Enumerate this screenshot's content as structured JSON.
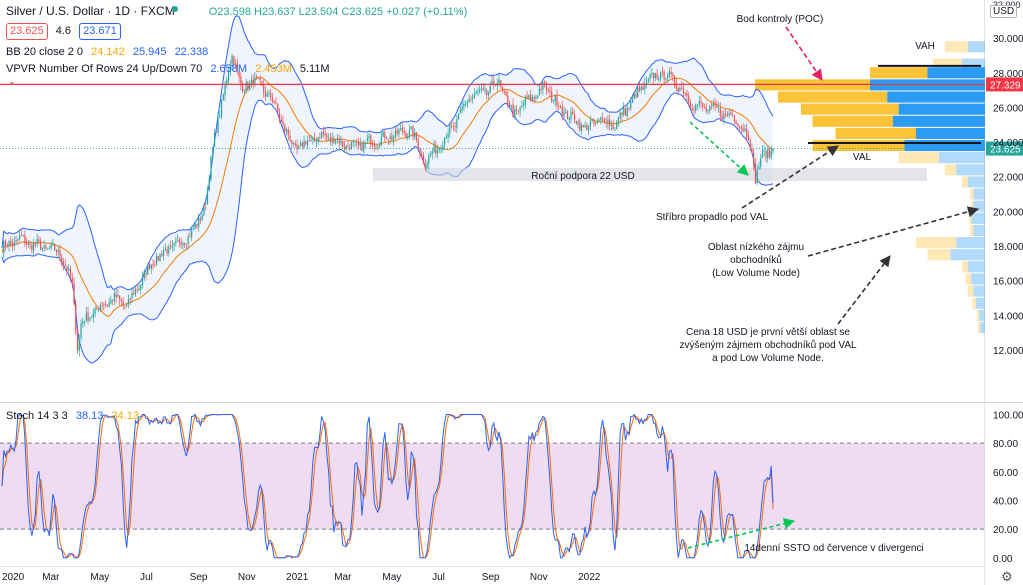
{
  "header": {
    "symbol": "Silver / U.S. Dollar · 1D · FXCM",
    "ohlc": "O23.598 H23.637 L23.504 C23.625 +0.027 (+0.11%)",
    "bid": "23.625",
    "spread": "4.6",
    "ask": "23.671"
  },
  "indicators": {
    "bb_label": "BB 20 close 2 0",
    "bb_basis": "24.142",
    "bb_upper": "25.945",
    "bb_lower": "22.338",
    "vpvr_label": "VPVR Number Of Rows 24 Up/Down 70",
    "vpvr_up": "2.658M",
    "vpvr_down": "2.453M",
    "vpvr_total": "5.11M",
    "stoch_label": "Stoch 14 3 3",
    "stoch_k": "38.13",
    "stoch_d": "34.13"
  },
  "currency": "USD",
  "colors": {
    "up": "#26a69a",
    "down": "#ef5350",
    "bb_fill": "#2962ff",
    "bb_basis": "#f57c00",
    "vp_up": "#fbc02d",
    "vp_down": "#2196f3",
    "stoch_k": "#2962ff",
    "stoch_d": "#ff6d00",
    "stoch_band": "#e1bee7",
    "poc_line": "#f23645",
    "arrow_red": "#e91e63",
    "arrow_green": "#00c853"
  },
  "chart_data": [
    {
      "type": "candlestick",
      "title": "Silver / U.S. Dollar · 1D · FXCM",
      "x_ticks": [
        "2020",
        "Mar",
        "May",
        "Jul",
        "Sep",
        "Nov",
        "2021",
        "Mar",
        "May",
        "Jul",
        "Sep",
        "Nov",
        "2022"
      ],
      "y_ticks": [
        "12.000",
        "14.000",
        "16.000",
        "18.000",
        "20.000",
        "22.000",
        "24.000",
        "26.000",
        "28.000",
        "30.000"
      ],
      "ylim": [
        9.0,
        32.2
      ],
      "last_price": 23.625,
      "last_price_label": "23.625",
      "poc_price": 27.329,
      "poc_label": "27.329",
      "close_path": [
        {
          "t": 0,
          "v": 17.9
        },
        {
          "t": 0.06,
          "v": 18.4
        },
        {
          "t": 0.1,
          "v": 18.1
        },
        {
          "t": 0.15,
          "v": 17.9
        },
        {
          "t": 0.2,
          "v": 17.6
        },
        {
          "t": 0.24,
          "v": 15.8
        },
        {
          "t": 0.26,
          "v": 12.0
        },
        {
          "t": 0.27,
          "v": 13.5
        },
        {
          "t": 0.32,
          "v": 14.3
        },
        {
          "t": 0.38,
          "v": 15.0
        },
        {
          "t": 0.43,
          "v": 14.6
        },
        {
          "t": 0.47,
          "v": 15.8
        },
        {
          "t": 0.52,
          "v": 17.2
        },
        {
          "t": 0.57,
          "v": 17.8
        },
        {
          "t": 0.62,
          "v": 18.3
        },
        {
          "t": 0.67,
          "v": 19.2
        },
        {
          "t": 0.7,
          "v": 20.8
        },
        {
          "t": 0.73,
          "v": 24.6
        },
        {
          "t": 0.77,
          "v": 27.6
        },
        {
          "t": 0.79,
          "v": 29.2
        },
        {
          "t": 0.82,
          "v": 27.0
        },
        {
          "t": 0.86,
          "v": 27.6
        },
        {
          "t": 0.92,
          "v": 26.6
        },
        {
          "t": 1.0,
          "v": 23.6
        },
        {
          "t": 1.1,
          "v": 24.4
        },
        {
          "t": 1.2,
          "v": 23.7
        },
        {
          "t": 1.3,
          "v": 24.2
        },
        {
          "t": 1.4,
          "v": 24.7
        },
        {
          "t": 1.45,
          "v": 22.8
        },
        {
          "t": 1.55,
          "v": 25.0
        },
        {
          "t": 1.6,
          "v": 26.6
        },
        {
          "t": 1.66,
          "v": 26.9
        },
        {
          "t": 1.7,
          "v": 27.5
        },
        {
          "t": 1.75,
          "v": 25.6
        },
        {
          "t": 1.8,
          "v": 26.4
        },
        {
          "t": 1.86,
          "v": 27.2
        },
        {
          "t": 1.92,
          "v": 25.8
        },
        {
          "t": 2.0,
          "v": 24.8
        },
        {
          "t": 2.05,
          "v": 25.3
        },
        {
          "t": 2.1,
          "v": 25.0
        },
        {
          "t": 2.15,
          "v": 26.2
        },
        {
          "t": 2.2,
          "v": 27.3
        },
        {
          "t": 2.25,
          "v": 28.0
        },
        {
          "t": 2.3,
          "v": 27.6
        },
        {
          "t": 2.37,
          "v": 26.1
        },
        {
          "t": 2.45,
          "v": 25.8
        },
        {
          "t": 2.52,
          "v": 25.3
        },
        {
          "t": 2.56,
          "v": 24.1
        },
        {
          "t": 2.58,
          "v": 22.0
        },
        {
          "t": 2.6,
          "v": 23.1
        },
        {
          "t": 2.64,
          "v": 23.6
        }
      ]
    },
    {
      "type": "histogram",
      "title": "VPVR Number Of Rows 24 Up/Down 70",
      "price_bins": [
        {
          "price": 29.5,
          "up": 0.2,
          "down": 0.15
        },
        {
          "price": 28.5,
          "up": 0.25,
          "down": 0.2
        },
        {
          "price": 28.0,
          "up": 0.5,
          "down": 0.5
        },
        {
          "price": 27.3,
          "up": 1.0,
          "down": 1.0
        },
        {
          "price": 26.6,
          "up": 0.95,
          "down": 0.85
        },
        {
          "price": 25.9,
          "up": 0.85,
          "down": 0.75
        },
        {
          "price": 25.2,
          "up": 0.7,
          "down": 0.8
        },
        {
          "price": 24.5,
          "up": 0.7,
          "down": 0.6
        },
        {
          "price": 23.8,
          "up": 0.8,
          "down": 0.7
        },
        {
          "price": 23.1,
          "up": 0.35,
          "down": 0.4
        },
        {
          "price": 22.4,
          "up": 0.1,
          "down": 0.25
        },
        {
          "price": 21.7,
          "up": 0.05,
          "down": 0.15
        },
        {
          "price": 21.0,
          "up": 0.03,
          "down": 0.1
        },
        {
          "price": 20.3,
          "up": 0.02,
          "down": 0.1
        },
        {
          "price": 19.6,
          "up": 0.02,
          "down": 0.12
        },
        {
          "price": 18.9,
          "up": 0.03,
          "down": 0.1
        },
        {
          "price": 18.2,
          "up": 0.35,
          "down": 0.25
        },
        {
          "price": 17.5,
          "up": 0.2,
          "down": 0.3
        },
        {
          "price": 16.8,
          "up": 0.05,
          "down": 0.15
        },
        {
          "price": 16.1,
          "up": 0.05,
          "down": 0.12
        },
        {
          "price": 15.4,
          "up": 0.05,
          "down": 0.1
        },
        {
          "price": 14.7,
          "up": 0.03,
          "down": 0.08
        },
        {
          "price": 14.0,
          "up": 0.02,
          "down": 0.05
        },
        {
          "price": 13.3,
          "up": 0.02,
          "down": 0.04
        }
      ]
    },
    {
      "type": "line",
      "title": "Stoch 14 3 3",
      "y_ticks": [
        "0.00",
        "20.00",
        "40.00",
        "60.00",
        "80.00",
        "100.00"
      ],
      "ylim": [
        -5,
        108
      ],
      "band": [
        20,
        80
      ],
      "last_k": 38.13,
      "last_d": 34.13
    }
  ],
  "annotations": {
    "poc": "Bod kontroly (POC)",
    "vah": "VAH",
    "val": "VAL",
    "support": "Roční podpora 22 USD",
    "silver_fell": "Stříbro propadlo pod VAL",
    "lvn_1": "Oblast nízkého zájmu",
    "lvn_2": "obchodníků",
    "lvn_3": "(Low Volume Node)",
    "note_1": "Cena 18 USD je první větší oblast se",
    "note_2": "zvýšeným zájmem obchodníků pod VAL",
    "note_3": "a pod Low Volume Node.",
    "stoch_div": "14denní SSTO od července v divergenci"
  },
  "axis_top_label": "32.000"
}
